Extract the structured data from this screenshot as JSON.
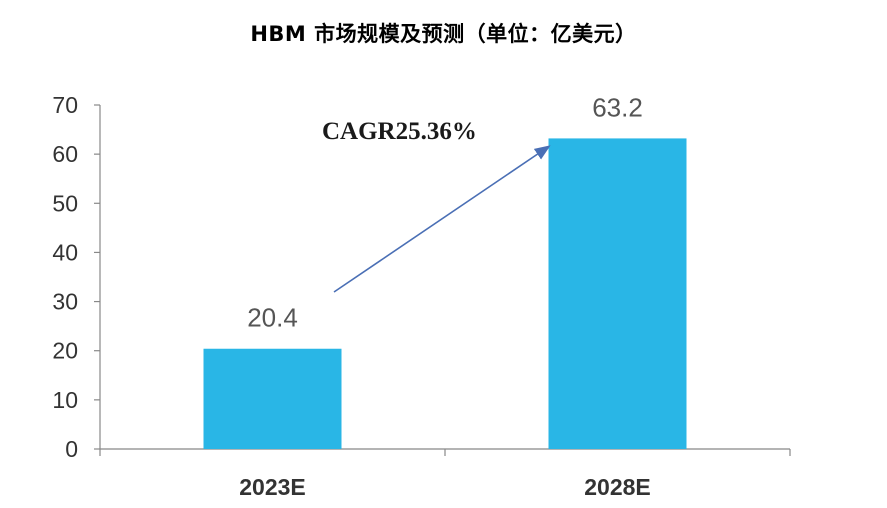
{
  "chart_data": {
    "type": "bar",
    "title": "HBM 市场规模及预测（单位：亿美元）",
    "xlabel": "",
    "ylabel": "",
    "categories": [
      "2023E",
      "2028E"
    ],
    "values": [
      20.4,
      63.2
    ],
    "data_labels": [
      "20.4",
      "63.2"
    ],
    "ylim": [
      0,
      70
    ],
    "yticks": [
      0,
      10,
      20,
      30,
      40,
      50,
      60,
      70
    ],
    "grid": false,
    "legend": "none",
    "annotation": "CAGR25.36%",
    "colors": {
      "bar": "#29B6E6",
      "arrow": "#4A6FB5",
      "axis": "#888888",
      "text": "#333333"
    }
  }
}
